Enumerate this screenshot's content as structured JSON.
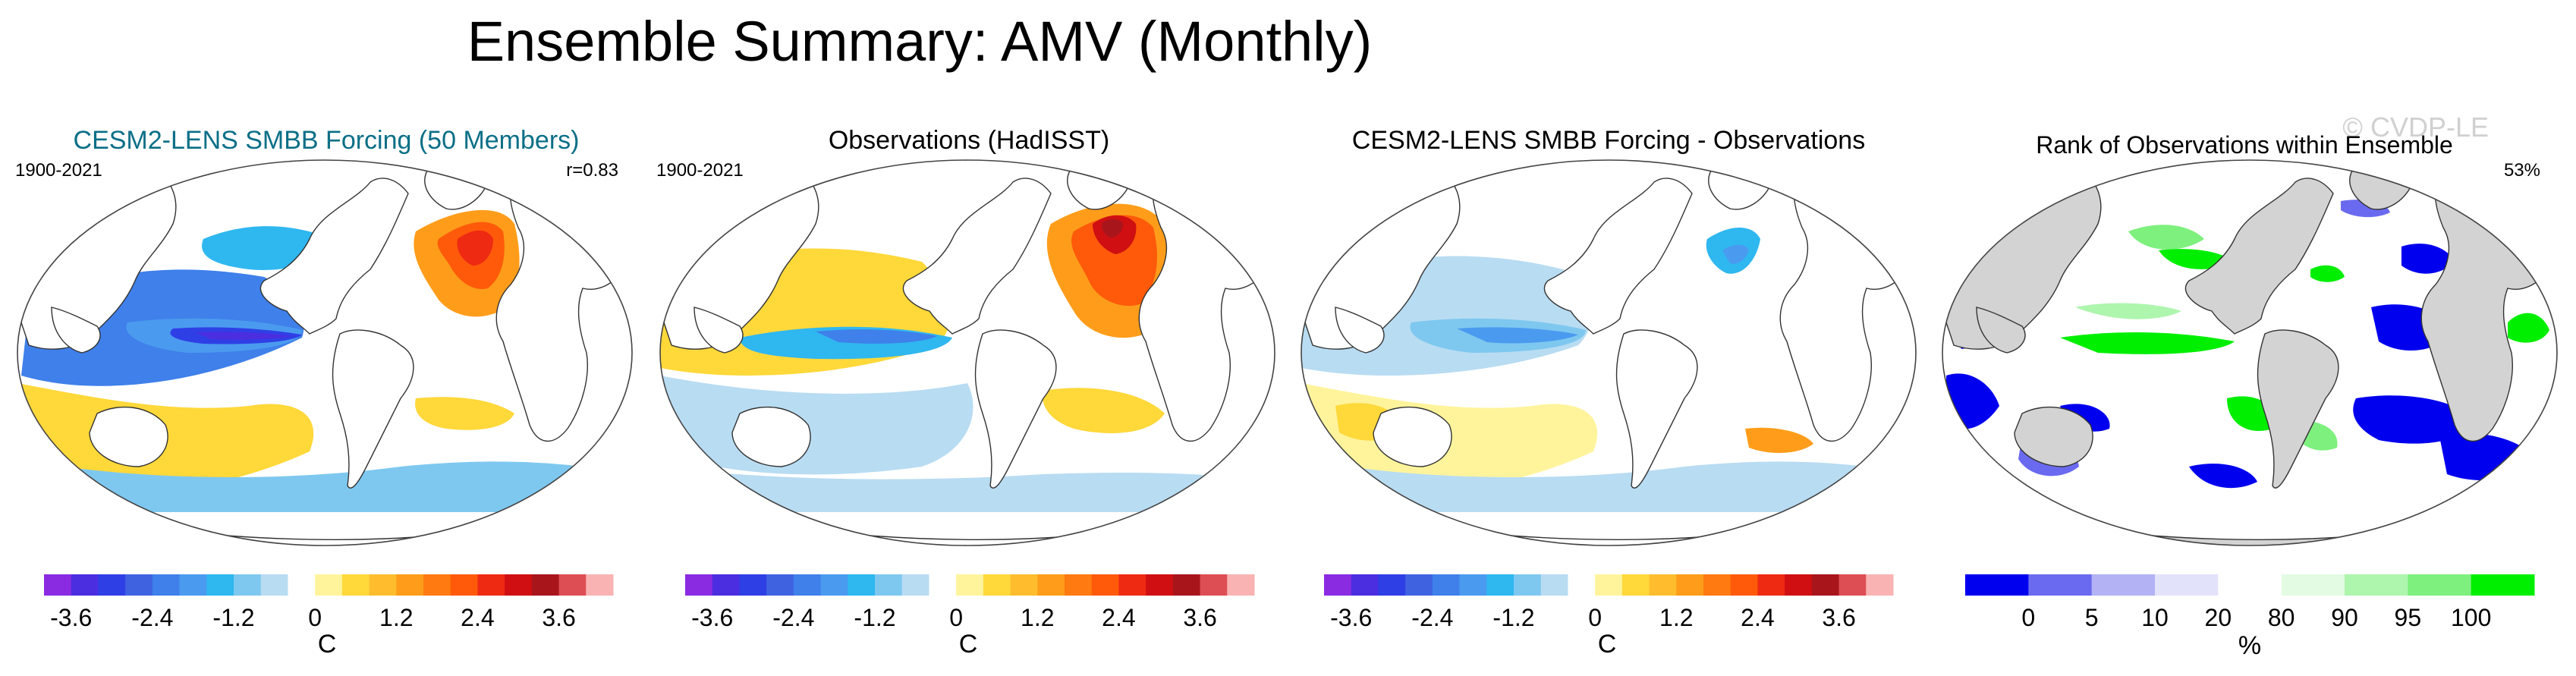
{
  "title": "Ensemble Summary: AMV (Monthly)",
  "watermark": "© CVDP-LE",
  "colors": {
    "land": "#ffffff",
    "land_gray": "#d3d3d3",
    "ocean_rank_base": "#ffffff",
    "coast": "#333333",
    "provider_title": "#0a6f87"
  },
  "temp_scale": [
    "#8a2be2",
    "#4b2ee0",
    "#2f3fe6",
    "#3f63e0",
    "#3f80ea",
    "#4a9bef",
    "#2fb7f0",
    "#7ec8f0",
    "#b8dcf2",
    "#ffffff",
    "#fff49c",
    "#ffd83a",
    "#ffbd2e",
    "#ff9d1a",
    "#ff7a10",
    "#ff5a0a",
    "#ee2a12",
    "#cf0f12",
    "#a8161c",
    "#dd4e54",
    "#f9b3b3"
  ],
  "rank_scale": [
    "#0000ee",
    "#6a6af0",
    "#b2b2f5",
    "#e2e2fa",
    "#ffffff",
    "#e3fbe3",
    "#aef5ae",
    "#7ef07e",
    "#00ee00"
  ],
  "panels": [
    {
      "title": "CESM2-LENS SMBB Forcing (50 Members)",
      "left_label": "1900-2021",
      "right_label": "r=0.83",
      "colorbar_ticks": [
        "-3.6",
        "-2.4",
        "-1.2",
        "0",
        "1.2",
        "2.4",
        "3.6"
      ],
      "colorbar_unit": "C"
    },
    {
      "title": "Observations (HadISST)",
      "left_label": "1900-2021",
      "right_label": "",
      "colorbar_ticks": [
        "-3.6",
        "-2.4",
        "-1.2",
        "0",
        "1.2",
        "2.4",
        "3.6"
      ],
      "colorbar_unit": "C"
    },
    {
      "title": "CESM2-LENS SMBB Forcing - Observations",
      "left_label": "",
      "right_label": "",
      "colorbar_ticks": [
        "-3.6",
        "-2.4",
        "-1.2",
        "0",
        "1.2",
        "2.4",
        "3.6"
      ],
      "colorbar_unit": "C"
    },
    {
      "title": "Rank of Observations within Ensemble",
      "left_label": "",
      "right_label": "53%",
      "colorbar_ticks": [
        "0",
        "5",
        "10",
        "20",
        "80",
        "90",
        "95",
        "100"
      ],
      "colorbar_unit": "%"
    }
  ],
  "chart_data": {
    "type": "heatmap",
    "title": "Ensemble Summary: AMV (Monthly)",
    "maps": [
      {
        "name": "CESM2-LENS SMBB Forcing (50 Members)",
        "period": "1900-2021",
        "pattern_correlation": 0.83,
        "units": "C",
        "levels": [
          -3.6,
          -2.4,
          -1.2,
          0,
          1.2,
          2.4,
          3.6
        ]
      },
      {
        "name": "Observations (HadISST)",
        "period": "1900-2021",
        "units": "C",
        "levels": [
          -3.6,
          -2.4,
          -1.2,
          0,
          1.2,
          2.4,
          3.6
        ]
      },
      {
        "name": "CESM2-LENS SMBB Forcing - Observations",
        "units": "C",
        "levels": [
          -3.6,
          -2.4,
          -1.2,
          0,
          1.2,
          2.4,
          3.6
        ]
      },
      {
        "name": "Rank of Observations within Ensemble",
        "summary_percent": 53,
        "units": "%",
        "levels": [
          0,
          5,
          10,
          20,
          80,
          90,
          95,
          100
        ]
      }
    ]
  }
}
